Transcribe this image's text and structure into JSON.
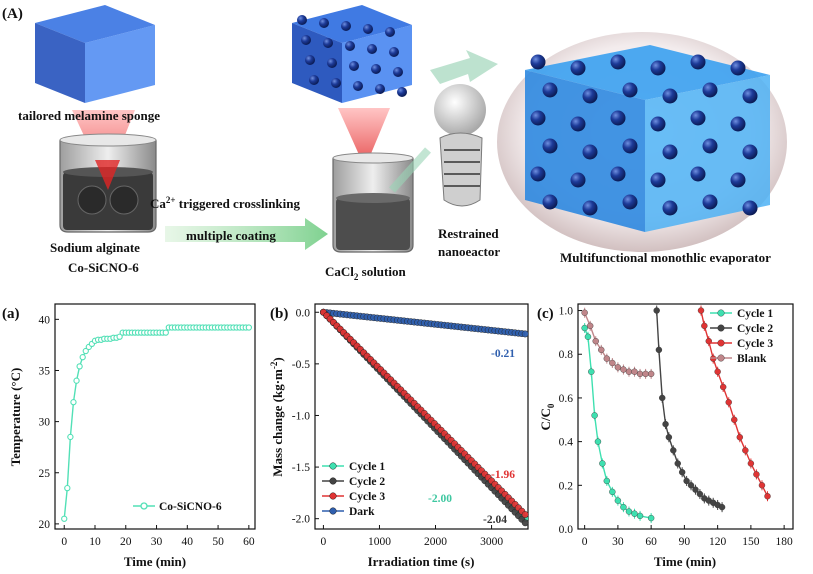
{
  "schematic": {
    "panel_label": "(A)",
    "labels": {
      "sponge": "tailored melamine sponge",
      "sodium": "Sodium alginate",
      "cosicno": "Co-SiCNO-6",
      "ca_prefix": "Ca",
      "ca_sup": "2+",
      "ca_suffix": " triggered crosslinking",
      "coating": "multiple coating",
      "cacl_prefix": "CaCl",
      "cacl_sub": "2",
      "cacl_suffix": " solution",
      "restrained": "Restrained",
      "nanoeactor": "nanoeactor",
      "evaporator": "Multifunctional monothlic evaporator"
    }
  },
  "colors": {
    "cycle1": "#3ee0b0",
    "cycle2": "#444444",
    "cycle3": "#e03434",
    "dark": "#2f5fae",
    "blank": "#c0868a",
    "temp": "#52e0b6",
    "sponge_blue": "#1c5fd8",
    "sphere": "#16307a"
  },
  "chart_data": [
    {
      "id": "a",
      "panel_label": "(a)",
      "type": "line",
      "xlabel": "Time (min)",
      "ylabel": "Temperature (°C)",
      "xlim": [
        -3,
        62
      ],
      "ylim": [
        19.5,
        41.5
      ],
      "xticks": [
        0,
        10,
        20,
        30,
        40,
        50,
        60
      ],
      "yticks": [
        20,
        25,
        30,
        35,
        40
      ],
      "legend": "lower-right",
      "series": [
        {
          "name": "Co-SiCNO-6",
          "color_key": "temp",
          "x": [
            0,
            1,
            2,
            3,
            4,
            5,
            6,
            7,
            8,
            9,
            10,
            11,
            12,
            13,
            14,
            15,
            16,
            17,
            18,
            19,
            20,
            21,
            22,
            23,
            24,
            25,
            26,
            27,
            28,
            29,
            30,
            31,
            32,
            33,
            34,
            35,
            36,
            37,
            38,
            39,
            40,
            41,
            42,
            43,
            44,
            45,
            46,
            47,
            48,
            49,
            50,
            51,
            52,
            53,
            54,
            55,
            56,
            57,
            58,
            59,
            60
          ],
          "y": [
            20.5,
            23.5,
            28.5,
            31.9,
            34.0,
            35.4,
            36.3,
            36.9,
            37.3,
            37.6,
            37.9,
            38.0,
            38.0,
            38.1,
            38.1,
            38.1,
            38.2,
            38.2,
            38.3,
            38.7,
            38.7,
            38.7,
            38.7,
            38.7,
            38.7,
            38.7,
            38.7,
            38.7,
            38.7,
            38.7,
            38.7,
            38.7,
            38.7,
            38.7,
            39.2,
            39.2,
            39.2,
            39.2,
            39.2,
            39.2,
            39.2,
            39.2,
            39.2,
            39.2,
            39.2,
            39.2,
            39.2,
            39.2,
            39.2,
            39.2,
            39.2,
            39.2,
            39.2,
            39.2,
            39.2,
            39.2,
            39.2,
            39.2,
            39.2,
            39.2,
            39.2
          ]
        }
      ]
    },
    {
      "id": "b",
      "panel_label": "(b)",
      "type": "scatter",
      "xlabel": "Irradiation time (s)",
      "ylabel_prefix": "Mass change (kg·m",
      "ylabel_sup": "-2",
      "ylabel_suffix": ")",
      "xlim": [
        -150,
        3650
      ],
      "ylim": [
        -2.1,
        0.08
      ],
      "xticks": [
        0,
        1000,
        2000,
        3000
      ],
      "yticks": [
        -2.0,
        -1.5,
        -1.0,
        -0.5,
        0.0
      ],
      "ytick_labels": [
        "-2.0",
        "-1.5",
        "-1.0",
        "-0.5",
        "0.0"
      ],
      "legend": "lower-left",
      "series": [
        {
          "name": "Cycle 1",
          "color_key": "cycle1",
          "end_value": -2.0
        },
        {
          "name": "Cycle 2",
          "color_key": "cycle2",
          "end_value": -2.04
        },
        {
          "name": "Cycle 3",
          "color_key": "cycle3",
          "end_value": -1.96
        },
        {
          "name": "Dark",
          "color_key": "dark",
          "end_value": -0.21
        }
      ],
      "x_start": 0,
      "x_end": 3600,
      "x_step": 60,
      "annotations": [
        "-0.21",
        "-1.96",
        "-2.00",
        "-2.04"
      ]
    },
    {
      "id": "c",
      "panel_label": "(c)",
      "type": "line",
      "xlabel": "Time (min)",
      "ylabel_prefix": "C/C",
      "ylabel_sub": "0",
      "xlim": [
        -6,
        188
      ],
      "ylim": [
        0,
        1.03
      ],
      "xticks": [
        0,
        30,
        60,
        90,
        120,
        150,
        180
      ],
      "yticks": [
        0.0,
        0.2,
        0.4,
        0.6,
        0.8,
        1.0
      ],
      "ytick_labels": [
        "0.0",
        "0.2",
        "0.4",
        "0.6",
        "0.8",
        "1.0"
      ],
      "legend": "top-right",
      "series": [
        {
          "name": "Cycle 1",
          "color_key": "cycle1",
          "x": [
            0,
            3,
            6,
            9,
            12,
            16,
            20,
            25,
            30,
            35,
            40,
            45,
            50,
            60
          ],
          "y": [
            0.92,
            0.88,
            0.72,
            0.52,
            0.4,
            0.3,
            0.22,
            0.17,
            0.13,
            0.1,
            0.08,
            0.07,
            0.06,
            0.05
          ]
        },
        {
          "name": "Cycle 2",
          "color_key": "cycle2",
          "x": [
            65,
            67,
            70,
            73,
            76,
            80,
            84,
            88,
            92,
            96,
            100,
            104,
            108,
            112,
            116,
            120,
            124
          ],
          "y": [
            1.0,
            0.82,
            0.6,
            0.48,
            0.42,
            0.36,
            0.3,
            0.26,
            0.22,
            0.2,
            0.18,
            0.16,
            0.14,
            0.13,
            0.12,
            0.11,
            0.1
          ]
        },
        {
          "name": "Cycle 3",
          "color_key": "cycle3",
          "x": [
            105,
            108,
            112,
            116,
            120,
            125,
            130,
            135,
            140,
            145,
            150,
            155,
            160,
            165
          ],
          "y": [
            1.0,
            0.93,
            0.86,
            0.78,
            0.72,
            0.65,
            0.58,
            0.5,
            0.42,
            0.36,
            0.3,
            0.25,
            0.2,
            0.15
          ]
        },
        {
          "name": "Blank",
          "color_key": "blank",
          "x": [
            0,
            5,
            10,
            15,
            20,
            25,
            30,
            35,
            40,
            45,
            50,
            55,
            60
          ],
          "y": [
            0.99,
            0.93,
            0.86,
            0.82,
            0.78,
            0.76,
            0.74,
            0.73,
            0.72,
            0.72,
            0.71,
            0.71,
            0.71
          ]
        }
      ]
    }
  ]
}
